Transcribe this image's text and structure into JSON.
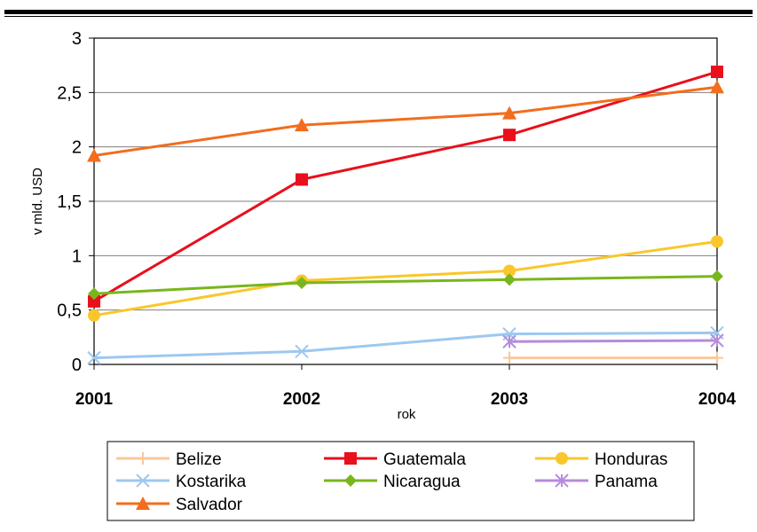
{
  "chart_data": {
    "type": "line",
    "title": "",
    "xlabel": "rok",
    "ylabel": "v mld. USD",
    "categories": [
      "2001",
      "2002",
      "2003",
      "2004"
    ],
    "y_ticks": [
      "0",
      "0,5",
      "1",
      "1,5",
      "2",
      "2,5",
      "3"
    ],
    "ylim": [
      0,
      3
    ],
    "grid": "horizontal",
    "legend_position": "bottom",
    "series": [
      {
        "name": "Belize",
        "color": "#f9c89a",
        "marker": "plus",
        "values": [
          null,
          null,
          0.06,
          0.06
        ]
      },
      {
        "name": "Guatemala",
        "color": "#e8101c",
        "marker": "square",
        "values": [
          0.58,
          1.7,
          2.11,
          2.69
        ]
      },
      {
        "name": "Honduras",
        "color": "#f9c72b",
        "marker": "circle",
        "values": [
          0.45,
          0.77,
          0.86,
          1.13
        ]
      },
      {
        "name": "Kostarika",
        "color": "#9dc8f0",
        "marker": "x",
        "values": [
          0.06,
          0.12,
          0.28,
          0.29
        ]
      },
      {
        "name": "Nicaragua",
        "color": "#79b61d",
        "marker": "diamond",
        "values": [
          0.65,
          0.75,
          0.78,
          0.81
        ]
      },
      {
        "name": "Panama",
        "color": "#b68bdc",
        "marker": "asterisk",
        "values": [
          null,
          null,
          0.21,
          0.22
        ]
      },
      {
        "name": "Salvador",
        "color": "#f26d1d",
        "marker": "triangle",
        "values": [
          1.92,
          2.2,
          2.31,
          2.55
        ]
      }
    ]
  }
}
